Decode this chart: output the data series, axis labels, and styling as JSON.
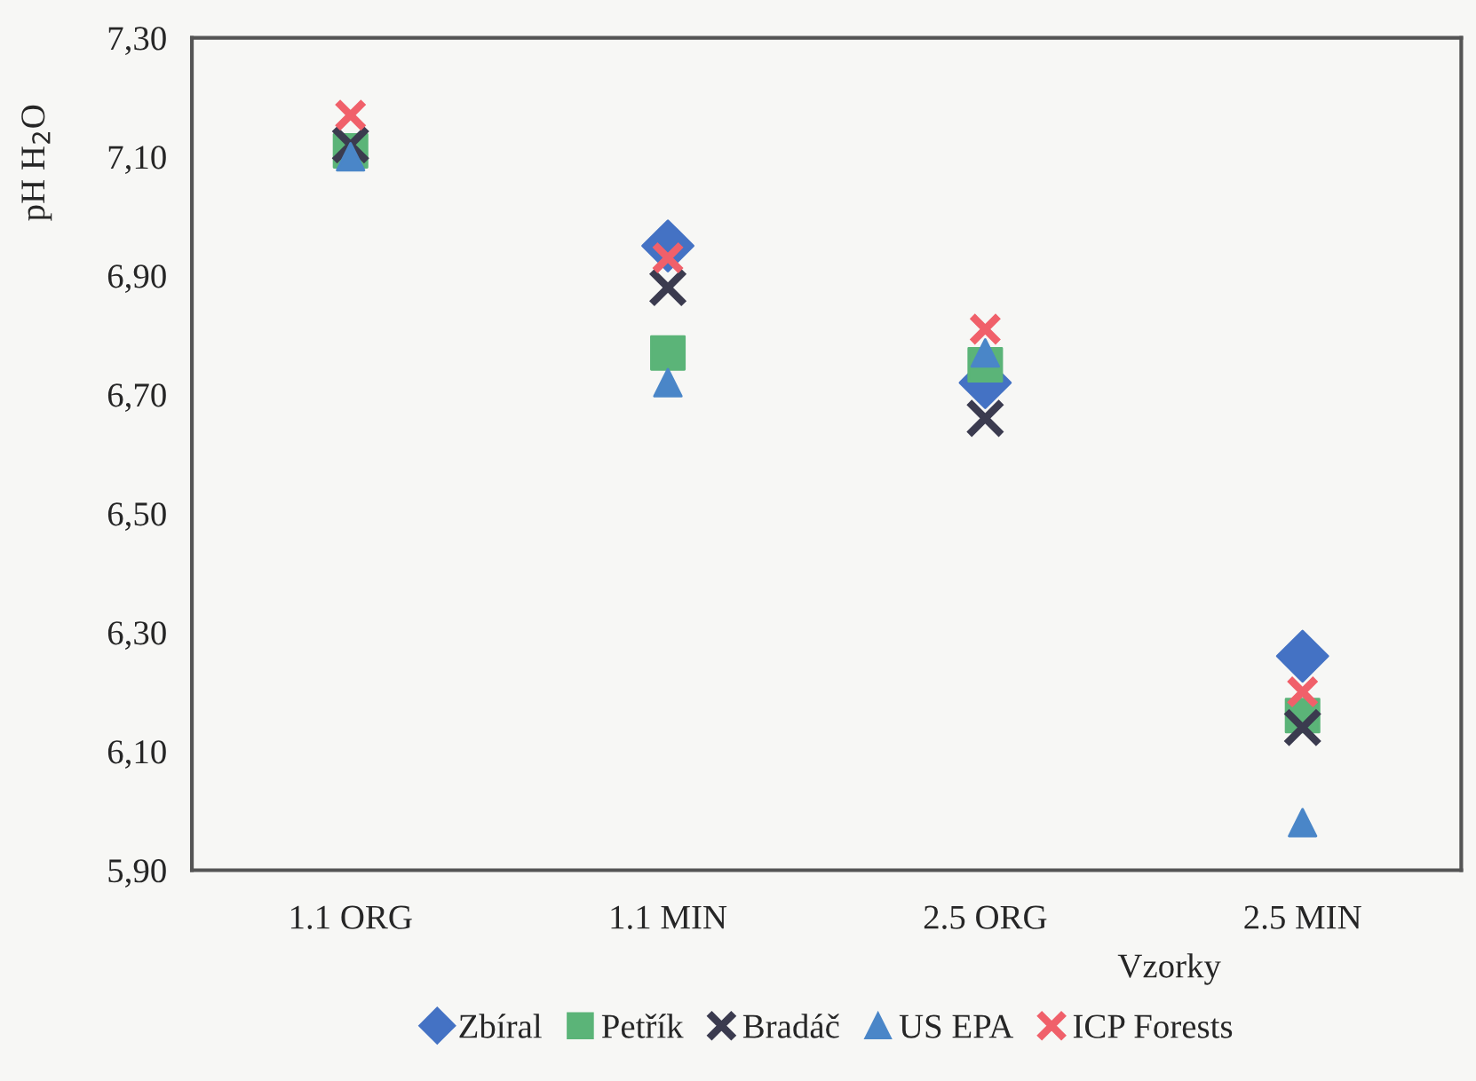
{
  "chart_data": {
    "type": "scatter",
    "ylabel": "pH H$_{2}$O",
    "xlabel": "Vzorky",
    "categories": [
      "1.1 ORG",
      "1.1 MIN",
      "2.5 ORG",
      "2.5 MIN"
    ],
    "series": [
      {
        "name": "Zbíral",
        "color": "#4472c4",
        "marker": "diamond",
        "values": [
          null,
          6.95,
          6.72,
          6.26
        ]
      },
      {
        "name": "Petřík",
        "color": "#5bb478",
        "marker": "square",
        "values": [
          7.11,
          6.77,
          6.75,
          6.16
        ]
      },
      {
        "name": "Bradáč",
        "color": "#3b3b4f",
        "marker": "cross",
        "values": [
          7.12,
          6.88,
          6.66,
          6.14
        ]
      },
      {
        "name": "US EPA",
        "color": "#4a86c8",
        "marker": "triangle",
        "values": [
          7.1,
          6.72,
          6.77,
          5.98
        ]
      },
      {
        "name": "ICP Forests",
        "color": "#f0606a",
        "marker": "cross",
        "values": [
          7.17,
          6.93,
          6.81,
          6.2
        ]
      }
    ],
    "ylim": [
      5.9,
      7.3
    ],
    "yticks": [
      {
        "value": 5.9,
        "label": "5,90"
      },
      {
        "value": 6.1,
        "label": "6,10"
      },
      {
        "value": 6.3,
        "label": "6,30"
      },
      {
        "value": 6.5,
        "label": "6,50"
      },
      {
        "value": 6.7,
        "label": "6,70"
      },
      {
        "value": 6.9,
        "label": "6,90"
      },
      {
        "value": 7.1,
        "label": "7,10"
      },
      {
        "value": 7.3,
        "label": "7,30"
      }
    ],
    "grid": false,
    "legend": "bottom"
  }
}
